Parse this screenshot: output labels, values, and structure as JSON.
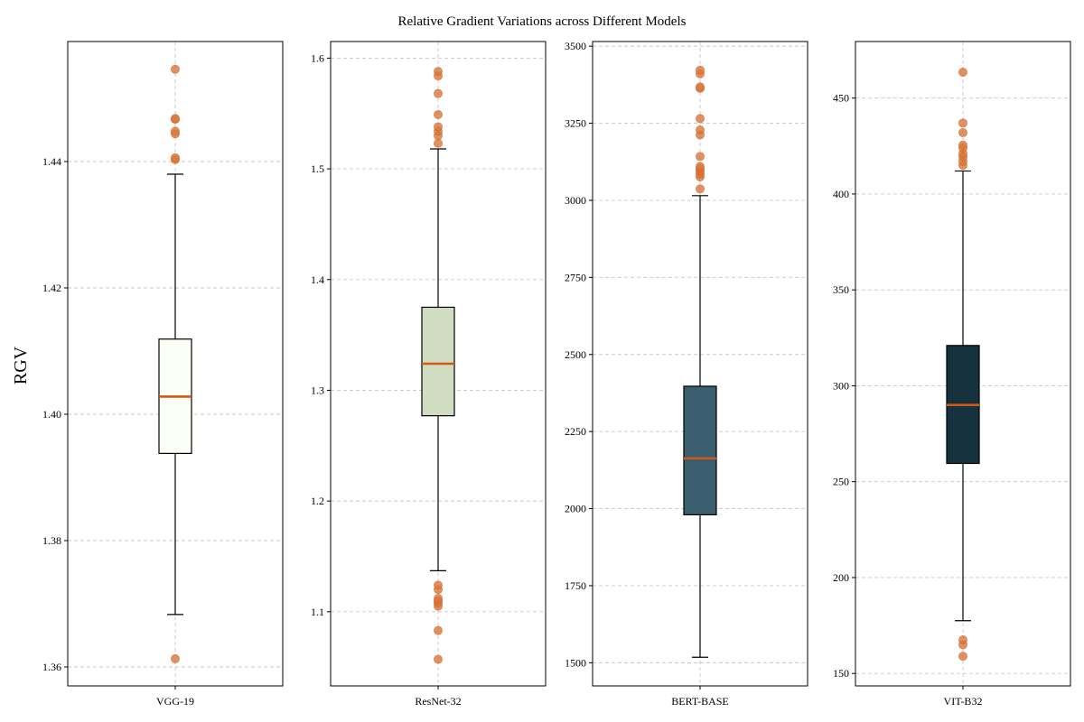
{
  "figure": {
    "title": "Relative Gradient Variations across Different Models",
    "ylabel": "RGV"
  },
  "colors": {
    "median": "#cc5a14",
    "outlier": "#d9773d",
    "grid": "#c8c8c8",
    "axes": "#000000"
  },
  "chart_data": [
    {
      "type": "box",
      "category": "VGG-19",
      "box_color": "#fbfff5",
      "ylim": [
        1.357,
        1.459
      ],
      "yticks": [
        1.36,
        1.38,
        1.4,
        1.42,
        1.44
      ],
      "ytick_labels": [
        "1.36",
        "1.38",
        "1.40",
        "1.42",
        "1.44"
      ],
      "whisker_low": 1.3683,
      "q1": 1.3938,
      "median": 1.4028,
      "q3": 1.4119,
      "whisker_high": 1.438,
      "outliers": [
        1.3613,
        1.4403,
        1.4406,
        1.4444,
        1.4448,
        1.4467,
        1.4468,
        1.4546
      ],
      "grid": true
    },
    {
      "type": "box",
      "category": "ResNet-32",
      "box_color": "#d1ddc0",
      "ylim": [
        1.033,
        1.615
      ],
      "yticks": [
        1.1,
        1.2,
        1.3,
        1.4,
        1.5,
        1.6
      ],
      "ytick_labels": [
        "1.1",
        "1.2",
        "1.3",
        "1.4",
        "1.5",
        "1.6"
      ],
      "whisker_low": 1.137,
      "q1": 1.277,
      "median": 1.324,
      "q3": 1.375,
      "whisker_high": 1.518,
      "outliers": [
        1.057,
        1.083,
        1.105,
        1.108,
        1.11,
        1.112,
        1.12,
        1.124,
        1.523,
        1.53,
        1.534,
        1.538,
        1.549,
        1.568,
        1.584,
        1.588
      ],
      "grid": true
    },
    {
      "type": "box",
      "category": "BERT-BASE",
      "box_color": "#3b5f6e",
      "ylim": [
        1425,
        3515
      ],
      "yticks": [
        1500,
        1750,
        2000,
        2250,
        2500,
        2750,
        3000,
        3250,
        3500
      ],
      "ytick_labels": [
        "1500",
        "1750",
        "2000",
        "2250",
        "2500",
        "2750",
        "3000",
        "3250",
        "3500"
      ],
      "whisker_low": 1518,
      "q1": 1980,
      "median": 2163,
      "q3": 2397,
      "whisker_high": 3015,
      "outliers": [
        3037,
        3076,
        3085,
        3095,
        3103,
        3110,
        3142,
        3212,
        3228,
        3265,
        3363,
        3368,
        3410,
        3422
      ],
      "grid": true
    },
    {
      "type": "box",
      "category": "VIT-B32",
      "box_color": "#17323f",
      "ylim": [
        143.5,
        479.5
      ],
      "yticks": [
        150,
        200,
        250,
        300,
        350,
        400,
        450
      ],
      "ytick_labels": [
        "150",
        "200",
        "250",
        "300",
        "350",
        "400",
        "450"
      ],
      "whisker_low": 177.5,
      "q1": 259.5,
      "median": 290,
      "q3": 321,
      "whisker_high": 412,
      "outliers": [
        159,
        165,
        167.5,
        415,
        417,
        419.5,
        421,
        424,
        425.5,
        432,
        437,
        463.5
      ],
      "grid": true
    }
  ]
}
